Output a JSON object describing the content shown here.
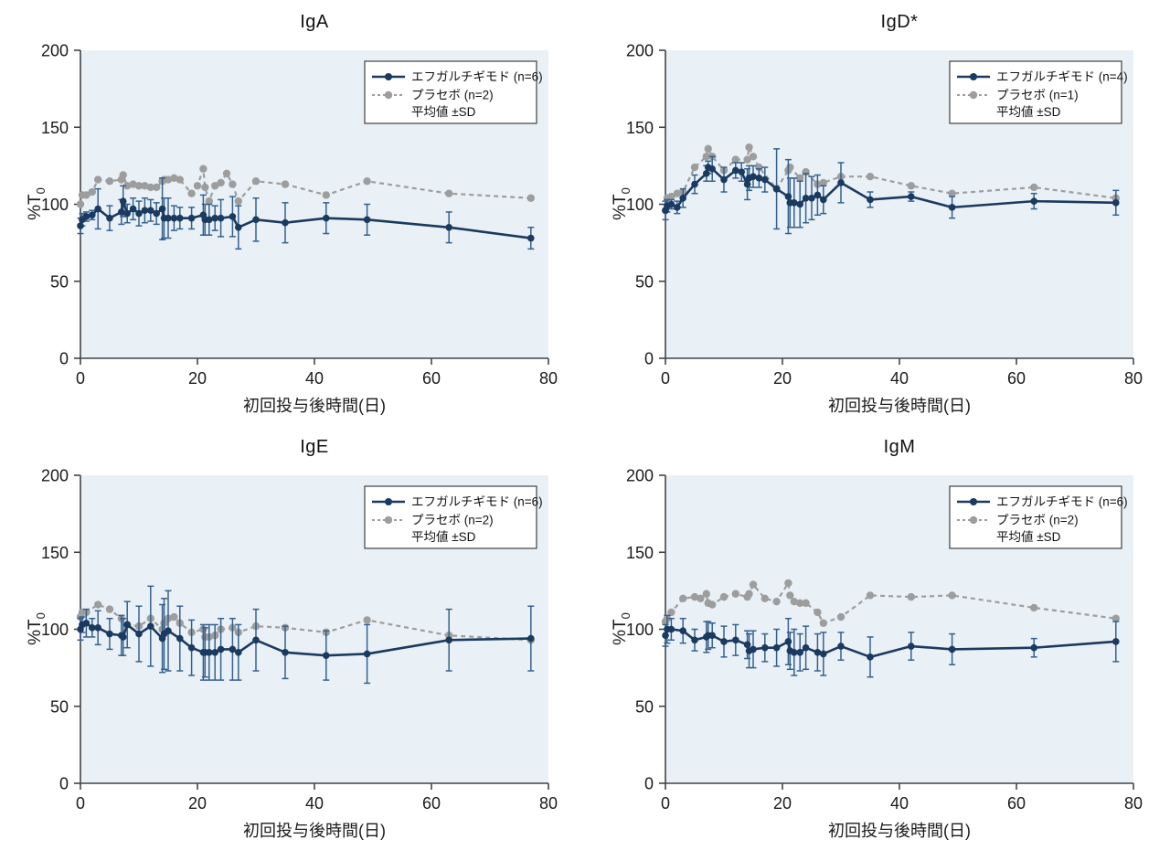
{
  "style": {
    "plot_bg": "#e9f1f6",
    "treatment_color": "#1b3a60",
    "treatment_err_color": "#35618e",
    "placebo_color": "#9d9d9d",
    "axis_color": "#444444",
    "text_color": "#1a1a1a",
    "legend_border_color": "#3f3f3f",
    "legend_bg": "#ffffff"
  },
  "axis": {
    "xlabel": "初回投与後時間(日)",
    "ylabel_prefix": "%T",
    "ylabel_sub": "0"
  },
  "chart_data": [
    {
      "type": "line",
      "title": "IgA",
      "xlabel": "初回投与後時間(日)",
      "ylabel": "%T0",
      "xlim": [
        0,
        80
      ],
      "ylim": [
        0,
        200
      ],
      "x_ticks": [
        0,
        20,
        40,
        60,
        80
      ],
      "y_ticks": [
        0,
        50,
        100,
        150,
        200
      ],
      "legend": {
        "position": "top-right",
        "entries": [
          "エフガルチギモド (n=6)",
          "プラセボ (n=2)"
        ],
        "note": "平均値 ±SD"
      },
      "series": [
        {
          "name": "エフガルチギモド (n=6)",
          "style": "solid",
          "x": [
            0,
            0.3,
            1,
            2,
            3,
            5,
            7,
            7.3,
            8,
            9,
            10,
            11,
            12,
            13,
            14,
            14.3,
            15,
            16,
            17,
            19,
            21,
            21.3,
            22,
            23,
            24,
            26,
            27,
            30,
            35,
            42,
            49,
            63,
            77
          ],
          "y": [
            86,
            90,
            92,
            93,
            97,
            91,
            95,
            102,
            94,
            97,
            94,
            96,
            96,
            94,
            97,
            91,
            91,
            91,
            91,
            91,
            93,
            90,
            90,
            91,
            91,
            92,
            85,
            90,
            88,
            91,
            90,
            85,
            78
          ],
          "sd": [
            5,
            4,
            3,
            3,
            13,
            8,
            8,
            10,
            6,
            7,
            8,
            8,
            7,
            7,
            20,
            13,
            13,
            8,
            7,
            7,
            13,
            10,
            10,
            8,
            12,
            13,
            14,
            14,
            13,
            10,
            10,
            10,
            7
          ]
        },
        {
          "name": "プラセボ (n=2)",
          "style": "dashed",
          "x": [
            0,
            0.3,
            1,
            2,
            3,
            5,
            7,
            7.3,
            8,
            9,
            10,
            11,
            12,
            13,
            14,
            14.3,
            15,
            16,
            17,
            19,
            20,
            21,
            21.3,
            22,
            23,
            24,
            25,
            26,
            27,
            30,
            35,
            42,
            49,
            63,
            77
          ],
          "y": [
            100,
            106,
            106,
            108,
            116,
            115,
            116,
            119,
            112,
            113,
            112,
            112,
            111,
            111,
            115,
            116,
            116,
            117,
            116,
            107,
            112,
            123,
            111,
            102,
            112,
            114,
            120,
            113,
            102,
            115,
            113,
            106,
            115,
            107,
            104
          ],
          "sd": []
        }
      ]
    },
    {
      "type": "line",
      "title": "IgD*",
      "xlabel": "初回投与後時間(日)",
      "ylabel": "%T0",
      "xlim": [
        0,
        80
      ],
      "ylim": [
        0,
        200
      ],
      "x_ticks": [
        0,
        20,
        40,
        60,
        80
      ],
      "y_ticks": [
        0,
        50,
        100,
        150,
        200
      ],
      "legend": {
        "position": "top-right",
        "entries": [
          "エフガルチギモド (n=4)",
          "プラセボ (n=1)"
        ],
        "note": "平均値 ±SD"
      },
      "series": [
        {
          "name": "エフガルチギモド (n=4)",
          "style": "solid",
          "x": [
            0,
            0.3,
            1,
            2,
            3,
            5,
            7,
            7.3,
            8,
            10,
            12,
            13,
            14,
            14.3,
            15,
            16,
            17,
            19,
            21,
            21.3,
            22,
            23,
            24,
            25,
            26,
            27,
            30,
            35,
            42,
            49,
            63,
            77
          ],
          "y": [
            96,
            99,
            100,
            98,
            104,
            113,
            120,
            124,
            123,
            116,
            122,
            121,
            113,
            117,
            118,
            117,
            116,
            110,
            105,
            101,
            101,
            100,
            104,
            104,
            106,
            103,
            114,
            103,
            105,
            98,
            102,
            101
          ],
          "sd": [
            6,
            4,
            3,
            4,
            6,
            6,
            5,
            4,
            8,
            8,
            5,
            6,
            10,
            8,
            7,
            6,
            8,
            26,
            24,
            16,
            16,
            15,
            16,
            14,
            13,
            9,
            13,
            5,
            3,
            7,
            5,
            8
          ]
        },
        {
          "name": "プラセボ (n=1)",
          "style": "dashed",
          "x": [
            0,
            0.3,
            1,
            2,
            3,
            5,
            7,
            7.3,
            8,
            10,
            12,
            14,
            14.3,
            15,
            16,
            19,
            21,
            21.3,
            23,
            24,
            26,
            27,
            30,
            35,
            42,
            49,
            63,
            77
          ],
          "y": [
            96,
            104,
            105,
            107,
            108,
            124,
            131,
            136,
            131,
            122,
            129,
            129,
            137,
            131,
            124,
            110,
            122,
            124,
            117,
            121,
            113,
            114,
            118,
            118,
            112,
            107,
            111,
            104
          ],
          "sd": []
        }
      ]
    },
    {
      "type": "line",
      "title": "IgE",
      "xlabel": "初回投与後時間(日)",
      "ylabel": "%T0",
      "xlim": [
        0,
        80
      ],
      "ylim": [
        0,
        200
      ],
      "x_ticks": [
        0,
        20,
        40,
        60,
        80
      ],
      "y_ticks": [
        0,
        50,
        100,
        150,
        200
      ],
      "legend": {
        "position": "top-right",
        "entries": [
          "エフガルチギモド (n=6)",
          "プラセボ (n=2)"
        ],
        "note": "平均値 ±SD"
      },
      "series": [
        {
          "name": "エフガルチギモド (n=6)",
          "style": "solid",
          "x": [
            0,
            0.3,
            1,
            2,
            3,
            5,
            7,
            7.3,
            8,
            10,
            12,
            14,
            14.3,
            15,
            17,
            19,
            21,
            21.3,
            22,
            23,
            24,
            26,
            27,
            30,
            35,
            42,
            49,
            63,
            77
          ],
          "y": [
            100,
            103,
            104,
            101,
            101,
            97,
            96,
            95,
            103,
            97,
            102,
            94,
            97,
            99,
            94,
            88,
            85,
            85,
            85,
            85,
            87,
            87,
            85,
            93,
            85,
            83,
            84,
            93,
            94
          ],
          "sd": [
            7,
            5,
            9,
            6,
            11,
            10,
            13,
            12,
            15,
            18,
            26,
            22,
            23,
            26,
            21,
            18,
            18,
            16,
            18,
            18,
            20,
            20,
            18,
            20,
            17,
            16,
            19,
            20,
            21
          ]
        },
        {
          "name": "プラセボ (n=2)",
          "style": "dashed",
          "x": [
            0,
            0.3,
            1,
            3,
            5,
            7,
            8,
            10,
            12,
            14,
            14.3,
            15,
            16,
            17,
            19,
            21,
            21.3,
            22,
            23,
            24,
            26,
            27,
            30,
            35,
            42,
            49,
            63,
            77
          ],
          "y": [
            108,
            111,
            111,
            116,
            113,
            107,
            103,
            102,
            107,
            100,
            104,
            107,
            108,
            104,
            98,
            100,
            95,
            95,
            96,
            100,
            101,
            98,
            102,
            101,
            98,
            106,
            96,
            93
          ],
          "sd": []
        }
      ]
    },
    {
      "type": "line",
      "title": "IgM",
      "xlabel": "初回投与後時間(日)",
      "ylabel": "%T0",
      "xlim": [
        0,
        80
      ],
      "ylim": [
        0,
        200
      ],
      "x_ticks": [
        0,
        20,
        40,
        60,
        80
      ],
      "y_ticks": [
        0,
        50,
        100,
        150,
        200
      ],
      "legend": {
        "position": "top-right",
        "entries": [
          "エフガルチギモド (n=6)",
          "プラセボ (n=2)"
        ],
        "note": "平均値 ±SD"
      },
      "series": [
        {
          "name": "エフガルチギモド (n=6)",
          "style": "solid",
          "x": [
            0,
            0.3,
            1,
            3,
            5,
            7,
            7.3,
            8,
            10,
            12,
            14,
            14.3,
            15,
            17,
            19,
            21,
            21.3,
            22,
            23,
            24,
            26,
            27,
            30,
            35,
            42,
            49,
            63,
            77
          ],
          "y": [
            96,
            100,
            100,
            99,
            93,
            95,
            96,
            96,
            92,
            93,
            90,
            86,
            87,
            88,
            88,
            92,
            86,
            85,
            85,
            88,
            85,
            84,
            89,
            82,
            89,
            87,
            88,
            92
          ],
          "sd": [
            7,
            9,
            7,
            8,
            7,
            10,
            9,
            8,
            10,
            10,
            9,
            11,
            12,
            9,
            12,
            15,
            12,
            15,
            12,
            14,
            12,
            14,
            9,
            13,
            9,
            10,
            6,
            13
          ]
        },
        {
          "name": "プラセボ (n=2)",
          "style": "dashed",
          "x": [
            0,
            0.3,
            1,
            3,
            5,
            6,
            7,
            7.3,
            8,
            10,
            12,
            14,
            14.3,
            15,
            17,
            19,
            21,
            21.3,
            22,
            23,
            24,
            26,
            27,
            30,
            35,
            42,
            49,
            63,
            77
          ],
          "y": [
            105,
            107,
            111,
            120,
            121,
            120,
            123,
            117,
            116,
            121,
            123,
            121,
            123,
            129,
            120,
            118,
            130,
            122,
            118,
            117,
            117,
            111,
            104,
            108,
            122,
            121,
            122,
            114,
            107
          ],
          "sd": []
        }
      ]
    }
  ]
}
